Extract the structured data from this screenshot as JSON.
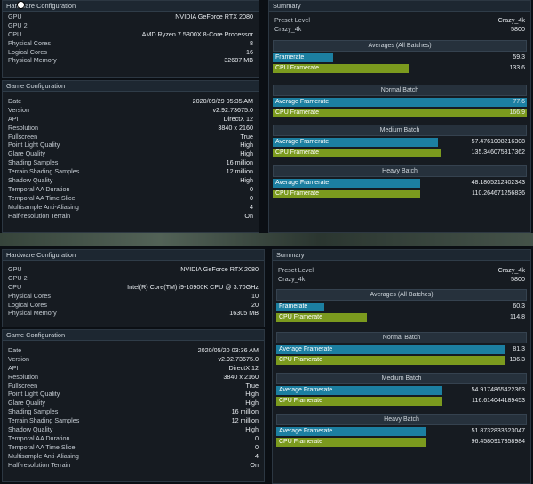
{
  "top": {
    "hardware": {
      "title": "Hardware Configuration",
      "rows": [
        {
          "k": "GPU",
          "v": "NVIDIA GeForce RTX 2080"
        },
        {
          "k": "GPU 2",
          "v": ""
        },
        {
          "k": "CPU",
          "v": "AMD Ryzen 7 5800X 8-Core Processor"
        },
        {
          "k": "Physical Cores",
          "v": "8"
        },
        {
          "k": "Logical Cores",
          "v": "16"
        },
        {
          "k": "Physical Memory",
          "v": "32687 MB"
        }
      ]
    },
    "game": {
      "title": "Game Configuration",
      "rows": [
        {
          "k": "Date",
          "v": "2020/09/29 05:35 AM"
        },
        {
          "k": "Version",
          "v": "v2.92.73675.0"
        },
        {
          "k": "API",
          "v": "DirectX 12"
        },
        {
          "k": "Resolution",
          "v": "3840 x 2160"
        },
        {
          "k": "Fullscreen",
          "v": "True"
        },
        {
          "k": "Point Light Quality",
          "v": "High"
        },
        {
          "k": "Glare Quality",
          "v": "High"
        },
        {
          "k": "Shading Samples",
          "v": "16 million"
        },
        {
          "k": "Terrain Shading Samples",
          "v": "12 million"
        },
        {
          "k": "Shadow Quality",
          "v": "High"
        },
        {
          "k": "Temporal AA Duration",
          "v": "0"
        },
        {
          "k": "Temporal AA Time Slice",
          "v": "0"
        },
        {
          "k": "Multisample Anti-Aliasing",
          "v": "4"
        },
        {
          "k": "Half-resolution Terrain",
          "v": "On"
        }
      ]
    },
    "summary": {
      "title": "Summary",
      "rows": [
        {
          "k": "Preset Level",
          "v": "Crazy_4k"
        },
        {
          "k": "Crazy_4k",
          "v": "5800"
        }
      ],
      "averages": {
        "head": "Averages (All Batches)",
        "bars": [
          {
            "label": "Framerate",
            "value": "59.3",
            "fraction": 0.238,
            "kind": "avg"
          },
          {
            "label": "CPU Framerate",
            "value": "133.6",
            "fraction": 0.536,
            "kind": "cpu"
          }
        ]
      },
      "normal": {
        "head": "Normal Batch",
        "bars": [
          {
            "label": "Average Framerate",
            "value": "77.6",
            "fraction": 1.0,
            "kind": "avg"
          },
          {
            "label": "CPU Framerate",
            "value": "166.9",
            "fraction": 1.0,
            "kind": "cpu"
          }
        ]
      },
      "medium": {
        "head": "Medium Batch",
        "bars": [
          {
            "label": "Average Framerate",
            "value": "57.4761008216308",
            "fraction": 0.65,
            "kind": "avg"
          },
          {
            "label": "CPU Framerate",
            "value": "135.346075317362",
            "fraction": 0.66,
            "kind": "cpu"
          }
        ]
      },
      "heavy": {
        "head": "Heavy Batch",
        "bars": [
          {
            "label": "Average Framerate",
            "value": "48.1805212402343",
            "fraction": 0.58,
            "kind": "avg"
          },
          {
            "label": "CPU Framerate",
            "value": "110.264671256836",
            "fraction": 0.58,
            "kind": "cpu"
          }
        ]
      }
    }
  },
  "bottom": {
    "hardware": {
      "title": "Hardware Configuration",
      "rows": [
        {
          "k": "GPU",
          "v": "NVIDIA GeForce RTX 2080"
        },
        {
          "k": "GPU 2",
          "v": ""
        },
        {
          "k": "CPU",
          "v": "Intel(R) Core(TM) i9-10900K CPU @ 3.70GHz"
        },
        {
          "k": "Physical Cores",
          "v": "10"
        },
        {
          "k": "Logical Cores",
          "v": "20"
        },
        {
          "k": "Physical Memory",
          "v": "16305 MB"
        }
      ]
    },
    "game": {
      "title": "Game Configuration",
      "rows": [
        {
          "k": "Date",
          "v": "2020/05/20 03:36 AM"
        },
        {
          "k": "Version",
          "v": "v2.92.73675.0"
        },
        {
          "k": "API",
          "v": "DirectX 12"
        },
        {
          "k": "Resolution",
          "v": "3840 x 2160"
        },
        {
          "k": "Fullscreen",
          "v": "True"
        },
        {
          "k": "Point Light Quality",
          "v": "High"
        },
        {
          "k": "Glare Quality",
          "v": "High"
        },
        {
          "k": "Shading Samples",
          "v": "16 million"
        },
        {
          "k": "Terrain Shading Samples",
          "v": "12 million"
        },
        {
          "k": "Shadow Quality",
          "v": "High"
        },
        {
          "k": "Temporal AA Duration",
          "v": "0"
        },
        {
          "k": "Temporal AA Time Slice",
          "v": "0"
        },
        {
          "k": "Multisample Anti-Aliasing",
          "v": "4"
        },
        {
          "k": "Half-resolution Terrain",
          "v": "On"
        }
      ]
    },
    "summary": {
      "title": "Summary",
      "rows": [
        {
          "k": "Preset Level",
          "v": "Crazy_4k"
        },
        {
          "k": "Crazy_4k",
          "v": "5800"
        }
      ],
      "averages": {
        "head": "Averages (All Batches)",
        "bars": [
          {
            "label": "Framerate",
            "value": "60.3",
            "fraction": 0.19,
            "kind": "avg"
          },
          {
            "label": "CPU Framerate",
            "value": "114.8",
            "fraction": 0.36,
            "kind": "cpu"
          }
        ]
      },
      "normal": {
        "head": "Normal Batch",
        "bars": [
          {
            "label": "Average Framerate",
            "value": "81.3",
            "fraction": 0.91,
            "kind": "avg"
          },
          {
            "label": "CPU Framerate",
            "value": "136.3",
            "fraction": 0.91,
            "kind": "cpu"
          }
        ]
      },
      "medium": {
        "head": "Medium Batch",
        "bars": [
          {
            "label": "Average Framerate",
            "value": "54.9174865422363",
            "fraction": 0.66,
            "kind": "avg"
          },
          {
            "label": "CPU Framerate",
            "value": "116.614044189453",
            "fraction": 0.66,
            "kind": "cpu"
          }
        ]
      },
      "heavy": {
        "head": "Heavy Batch",
        "bars": [
          {
            "label": "Average Framerate",
            "value": "51.8732833623047",
            "fraction": 0.6,
            "kind": "avg"
          },
          {
            "label": "CPU Framerate",
            "value": "96.4580917358984",
            "fraction": 0.6,
            "kind": "cpu"
          }
        ]
      }
    }
  }
}
